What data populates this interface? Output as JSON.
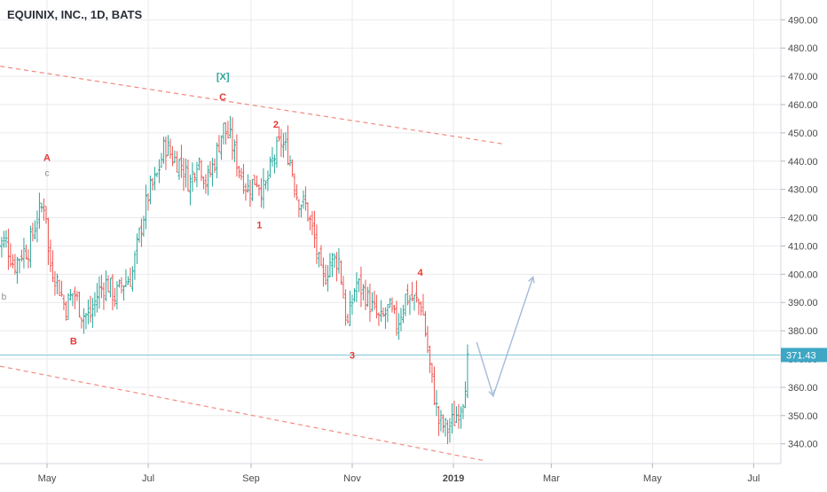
{
  "header": {
    "title": "EQUINIX, INC., 1D, BATS"
  },
  "colors": {
    "up": "#26a69a",
    "down": "#ef5350",
    "grid": "#e9eaec",
    "axis_text": "#4a4a4a",
    "trendline": "#f28b82",
    "price_line": "#7ec8d8",
    "price_badge": "#3fa6c4",
    "wave_red": "#e53935",
    "wave_gray": "#8c8c8c",
    "wave_teal": "#26a69a",
    "projection": "#a9bfdc"
  },
  "chart_data": {
    "type": "ohlc",
    "title": "EQUINIX, INC., 1D, BATS",
    "x_ticks": [
      "May",
      "Jul",
      "Sep",
      "Nov",
      "2019",
      "Mar",
      "May",
      "Jul"
    ],
    "y_ticks": [
      340,
      350,
      360,
      370,
      380,
      390,
      400,
      410,
      420,
      430,
      440,
      450,
      460,
      470,
      480,
      490
    ],
    "y_tick_labels": [
      "340.00",
      "350.00",
      "360.00",
      "370.00",
      "380.00",
      "390.00",
      "400.00",
      "410.00",
      "420.00",
      "430.00",
      "440.00",
      "450.00",
      "460.00",
      "470.00",
      "480.00",
      "490.00"
    ],
    "ylim": [
      333,
      497
    ],
    "grid": true,
    "current_price": {
      "value": 371.43,
      "label": "371.43"
    },
    "close_path": [
      [
        "2018-04-01",
        410
      ],
      [
        "2018-04-06",
        412
      ],
      [
        "2018-04-11",
        403
      ],
      [
        "2018-04-16",
        408
      ],
      [
        "2018-04-20",
        409
      ],
      [
        "2018-04-25",
        420
      ],
      [
        "2018-04-30",
        426
      ],
      [
        "2018-05-02",
        405
      ],
      [
        "2018-05-07",
        398
      ],
      [
        "2018-05-12",
        388
      ],
      [
        "2018-05-17",
        394
      ],
      [
        "2018-05-22",
        386
      ],
      [
        "2018-05-27",
        385
      ],
      [
        "2018-06-01",
        394
      ],
      [
        "2018-06-06",
        397
      ],
      [
        "2018-06-11",
        392
      ],
      [
        "2018-06-16",
        397
      ],
      [
        "2018-06-21",
        399
      ],
      [
        "2018-06-26",
        415
      ],
      [
        "2018-07-01",
        428
      ],
      [
        "2018-07-06",
        434
      ],
      [
        "2018-07-11",
        446
      ],
      [
        "2018-07-16",
        441
      ],
      [
        "2018-07-21",
        439
      ],
      [
        "2018-07-26",
        432
      ],
      [
        "2018-07-31",
        442
      ],
      [
        "2018-08-05",
        432
      ],
      [
        "2018-08-10",
        440
      ],
      [
        "2018-08-15",
        452
      ],
      [
        "2018-08-20",
        447
      ],
      [
        "2018-08-25",
        437
      ],
      [
        "2018-08-30",
        430
      ],
      [
        "2018-09-04",
        434
      ],
      [
        "2018-09-09",
        429
      ],
      [
        "2018-09-14",
        440
      ],
      [
        "2018-09-19",
        447
      ],
      [
        "2018-09-24",
        442
      ],
      [
        "2018-09-29",
        427
      ],
      [
        "2018-10-04",
        424
      ],
      [
        "2018-10-09",
        413
      ],
      [
        "2018-10-14",
        397
      ],
      [
        "2018-10-19",
        405
      ],
      [
        "2018-10-24",
        405
      ],
      [
        "2018-10-29",
        381
      ],
      [
        "2018-11-03",
        397
      ],
      [
        "2018-11-08",
        394
      ],
      [
        "2018-11-13",
        388
      ],
      [
        "2018-11-18",
        383
      ],
      [
        "2018-11-23",
        388
      ],
      [
        "2018-11-28",
        382
      ],
      [
        "2018-12-03",
        392
      ],
      [
        "2018-12-08",
        391
      ],
      [
        "2018-12-13",
        389
      ],
      [
        "2018-12-18",
        366
      ],
      [
        "2018-12-23",
        348
      ],
      [
        "2018-12-28",
        345
      ],
      [
        "2019-01-02",
        349
      ],
      [
        "2019-01-07",
        357
      ],
      [
        "2019-01-10",
        371
      ]
    ],
    "trendlines": [
      {
        "points": [
          [
            "2018-03-29",
            474
          ],
          [
            "2019-02-01",
            446
          ]
        ]
      },
      {
        "points": [
          [
            "2018-03-29",
            368
          ],
          [
            "2019-01-20",
            334
          ]
        ]
      }
    ],
    "wave_labels": [
      {
        "text": "A",
        "date": "2018-05-01",
        "price": 436,
        "color": "wave_red"
      },
      {
        "text": "c",
        "date": "2018-05-01",
        "price": 436,
        "color": "wave_gray"
      },
      {
        "text": "b",
        "date": "2018-04-05",
        "price": 391,
        "color": "wave_gray"
      },
      {
        "text": "B",
        "date": "2018-05-17",
        "price": 379,
        "color": "wave_red"
      },
      {
        "text": "[X]",
        "date": "2018-08-15",
        "price": 464,
        "color": "wave_teal"
      },
      {
        "text": "C",
        "date": "2018-08-15",
        "price": 459,
        "color": "wave_red"
      },
      {
        "text": "2",
        "date": "2018-09-16",
        "price": 450,
        "color": "wave_red"
      },
      {
        "text": "1",
        "date": "2018-09-06",
        "price": 420,
        "color": "wave_red"
      },
      {
        "text": "3",
        "date": "2018-11-01",
        "price": 374,
        "color": "wave_red"
      },
      {
        "text": "4",
        "date": "2018-12-12",
        "price": 397,
        "color": "wave_red"
      }
    ],
    "projection": [
      [
        "2019-01-15",
        376
      ],
      [
        "2019-01-25",
        357
      ],
      [
        "2019-02-18",
        399
      ]
    ]
  }
}
